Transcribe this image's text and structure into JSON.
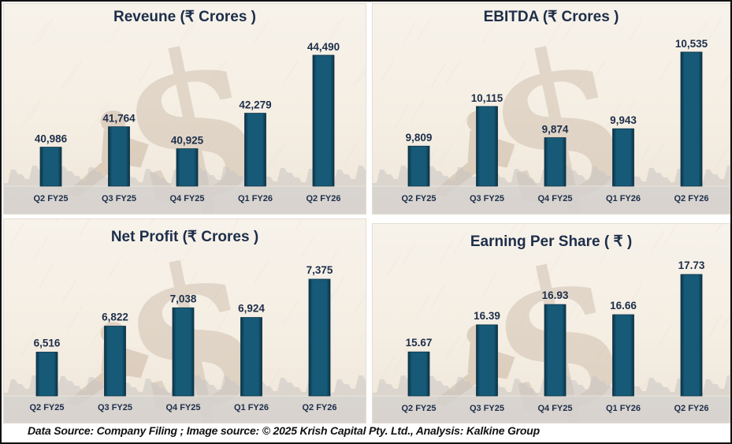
{
  "colors": {
    "bar_fill": "#175a78",
    "bar_edge": "#0b3346",
    "text": "#1d2e4a",
    "watermark": "#c9b8a6",
    "skyline": "#c8c5c2"
  },
  "chart_data": [
    {
      "type": "bar",
      "title": "Reveune  (₹ Crores )",
      "categories": [
        "Q2 FY25",
        "Q3 FY25",
        "Q4 FY25",
        "Q1 FY26",
        "Q2 FY26"
      ],
      "values": [
        40986,
        41764,
        40925,
        42279,
        44490
      ],
      "labels": [
        "40,986",
        "41,764",
        "40,925",
        "42,279",
        "44,490"
      ],
      "xlabel": "",
      "ylabel": "",
      "ylim": [
        39500,
        44490
      ],
      "grid": false,
      "legend": "none"
    },
    {
      "type": "bar",
      "title": "EBITDA  (₹ Crores )",
      "categories": [
        "Q2 FY25",
        "Q3 FY25",
        "Q4 FY25",
        "Q1 FY26",
        "Q2 FY26"
      ],
      "values": [
        9809,
        10115,
        9874,
        9943,
        10535
      ],
      "labels": [
        "9,809",
        "10,115",
        "9,874",
        "9,943",
        "10,535"
      ],
      "xlabel": "",
      "ylabel": "",
      "ylim": [
        9500,
        10535
      ],
      "grid": false,
      "legend": "none"
    },
    {
      "type": "bar",
      "title": "Net Profit  (₹ Crores )",
      "categories": [
        "Q2 FY25",
        "Q3 FY25",
        "Q4 FY25",
        "Q1 FY26",
        "Q2 FY26"
      ],
      "values": [
        6516,
        6822,
        7038,
        6924,
        7375
      ],
      "labels": [
        "6,516",
        "6,822",
        "7,038",
        "6,924",
        "7,375"
      ],
      "xlabel": "",
      "ylabel": "",
      "ylim": [
        6000,
        7375
      ],
      "grid": false,
      "legend": "none"
    },
    {
      "type": "bar",
      "title": "Earning Per Share  ( ₹ )",
      "categories": [
        "Q2 FY25",
        "Q3 FY25",
        "Q4 FY25",
        "Q1 FY26",
        "Q2 FY26"
      ],
      "values": [
        15.67,
        16.39,
        16.93,
        16.66,
        17.73
      ],
      "labels": [
        "15.67",
        "16.39",
        "16.93",
        "16.66",
        "17.73"
      ],
      "xlabel": "",
      "ylabel": "",
      "ylim": [
        14.5,
        17.73
      ],
      "grid": false,
      "legend": "none"
    }
  ],
  "footer": {
    "text": "Data Source: Company Filing ; Image source: © 2025 Krish Capital Pty. Ltd., Analysis: Kalkine Group"
  }
}
